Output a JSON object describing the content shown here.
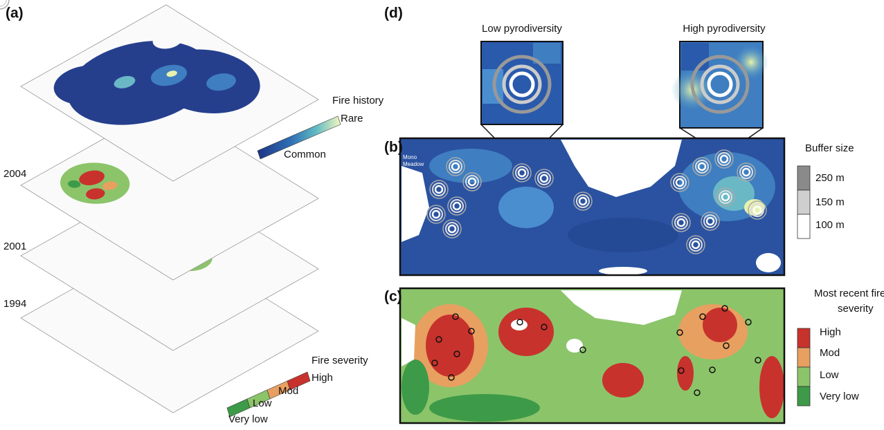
{
  "panels": {
    "a": {
      "label": "(a)",
      "fire_history": {
        "title": "Fire history",
        "high": "Rare",
        "low": "Common"
      },
      "years": [
        "2004",
        "2001",
        "1994"
      ],
      "fire_severity": {
        "title": "Fire severity",
        "classes": [
          "High",
          "Mod",
          "Low",
          "Very low"
        ]
      }
    },
    "b": {
      "label": "(b)",
      "place": [
        "Mono",
        "Meadow"
      ],
      "buffer_legend": {
        "title": "Buffer size",
        "sizes": [
          "250 m",
          "150 m",
          "100 m"
        ]
      }
    },
    "c": {
      "label": "(c)",
      "legend": {
        "title": [
          "Most recent fire",
          "severity"
        ],
        "classes": [
          "High",
          "Mod",
          "Low",
          "Very low"
        ]
      }
    },
    "d": {
      "label": "(d)",
      "insets": [
        "Low pyrodiversity",
        "High pyrodiversity"
      ]
    }
  }
}
